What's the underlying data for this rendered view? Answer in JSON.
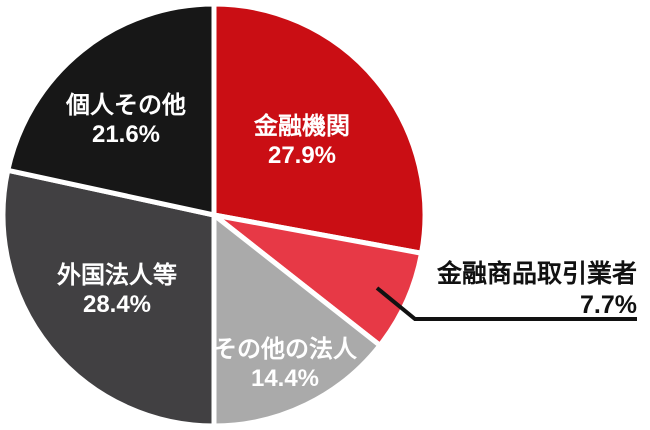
{
  "page": {
    "background": "#FFFFFF"
  },
  "chart_data": {
    "type": "pie",
    "title": "",
    "legend": "none",
    "start_angle_deg": 0,
    "direction": "clockwise",
    "slice_border_color": "#FFFFFF",
    "inside_label_color": "#FFFFFF",
    "outside_label_color": "#111111",
    "leader_line_color": "#111111",
    "slices": [
      {
        "label": "金融機関",
        "value": 27.9,
        "display_value": "27.9%",
        "color": "#CA0E14",
        "label_placement": "inside"
      },
      {
        "label": "金融商品取引業者",
        "value": 7.7,
        "display_value": "7.7%",
        "color": "#E73946",
        "label_placement": "outside-right-leader-line"
      },
      {
        "label": "その他の法人",
        "value": 14.4,
        "display_value": "14.4%",
        "color": "#AAAAAA",
        "label_placement": "inside"
      },
      {
        "label": "外国法人等",
        "value": 28.4,
        "display_value": "28.4%",
        "color": "#414042",
        "label_placement": "inside"
      },
      {
        "label": "個人その他",
        "value": 21.6,
        "display_value": "21.6%",
        "color": "#171717",
        "label_placement": "inside"
      }
    ]
  }
}
